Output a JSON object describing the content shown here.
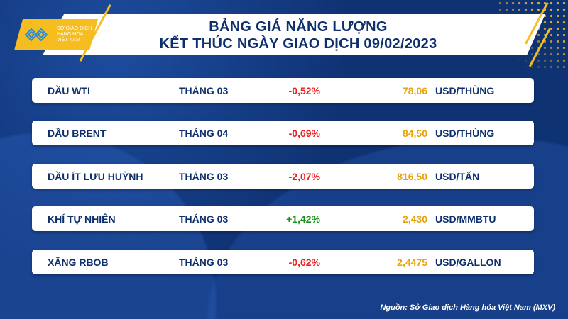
{
  "logo": {
    "lines": [
      "SỞ GIAO DỊCH",
      "HÀNG HÓA",
      "VIỆT NAM"
    ]
  },
  "header": {
    "title_line1": "BẢNG GIÁ NĂNG LƯỢNG",
    "title_line2": "KẾT THÚC NGÀY GIAO DỊCH 09/02/2023"
  },
  "rows": [
    {
      "name": "DẦU WTI",
      "month": "THÁNG 03",
      "change": "-0,52%",
      "price": "78,06",
      "unit": "USD/THÙNG"
    },
    {
      "name": "DẦU BRENT",
      "month": "THÁNG 04",
      "change": "-0,69%",
      "price": "84,50",
      "unit": "USD/THÙNG"
    },
    {
      "name": "DẦU ÍT LƯU HUỲNH",
      "month": "THÁNG 03",
      "change": "-2,07%",
      "price": "816,50",
      "unit": "USD/TẤN"
    },
    {
      "name": "KHÍ TỰ NHIÊN",
      "month": "THÁNG 03",
      "change": "+1,42%",
      "price": "2,430",
      "unit": "USD/MMBTU"
    },
    {
      "name": "XĂNG RBOB",
      "month": "THÁNG 03",
      "change": "-0,62%",
      "price": "2,4475",
      "unit": "USD/GALLON"
    }
  ],
  "source": "Nguồn: Sở Giao dịch Hàng hóa Việt Nam (MXV)",
  "colors": {
    "background": "#0f3273",
    "accent": "#f5bd1f",
    "negative": "#ee1c1c",
    "positive": "#1a8f1a",
    "price": "#e8a20b"
  }
}
